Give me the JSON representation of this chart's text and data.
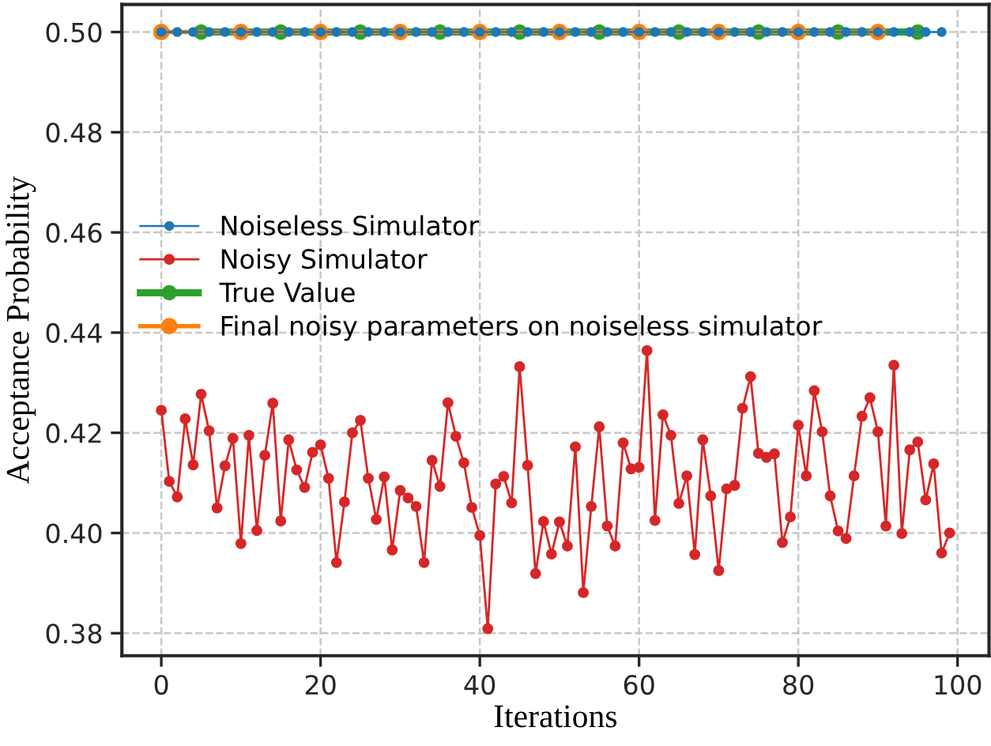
{
  "chart_data": {
    "type": "line",
    "xlabel": "Iterations",
    "ylabel": "Acceptance Probability",
    "xlim": [
      -4.95,
      103.95
    ],
    "xticks": [
      0,
      20,
      40,
      60,
      80,
      100
    ],
    "ylim": [
      0.3755,
      0.5055
    ],
    "yticks": [
      {
        "value": 0.38,
        "label": "0.38"
      },
      {
        "value": 0.4,
        "label": "0.40"
      },
      {
        "value": 0.42,
        "label": "0.42"
      },
      {
        "value": 0.44,
        "label": "0.44"
      },
      {
        "value": 0.46,
        "label": "0.46"
      },
      {
        "value": 0.48,
        "label": "0.48"
      },
      {
        "value": 0.5,
        "label": "0.50"
      }
    ],
    "grid": true,
    "legend": "left",
    "marker": "circle",
    "line_style": "solid",
    "series": [
      {
        "name": "Noiseless Simulator",
        "color": "#1f77b4",
        "x": [
          0,
          2,
          4,
          6,
          8,
          10,
          12,
          14,
          16,
          18,
          20,
          22,
          24,
          26,
          28,
          30,
          32,
          34,
          36,
          38,
          40,
          42,
          44,
          46,
          48,
          50,
          52,
          54,
          56,
          58,
          60,
          62,
          64,
          66,
          68,
          70,
          72,
          74,
          76,
          78,
          80,
          82,
          84,
          86,
          88,
          90,
          92,
          94,
          96,
          98
        ],
        "values": [
          0.5,
          0.5,
          0.5,
          0.5,
          0.5,
          0.5,
          0.5,
          0.5,
          0.5,
          0.5,
          0.5,
          0.5,
          0.5,
          0.5,
          0.5,
          0.5,
          0.5,
          0.5,
          0.5,
          0.5,
          0.5,
          0.5,
          0.5,
          0.5,
          0.5,
          0.5,
          0.5,
          0.5,
          0.5,
          0.5,
          0.5,
          0.5,
          0.5,
          0.5,
          0.5,
          0.5,
          0.5,
          0.5,
          0.5,
          0.5,
          0.5,
          0.5,
          0.5,
          0.5,
          0.5,
          0.5,
          0.5,
          0.5,
          0.5,
          0.5
        ]
      },
      {
        "name": "Noisy Simulator",
        "color": "#d62728",
        "x": [
          0,
          1,
          2,
          3,
          4,
          5,
          6,
          7,
          8,
          9,
          10,
          11,
          12,
          13,
          14,
          15,
          16,
          17,
          18,
          19,
          20,
          21,
          22,
          23,
          24,
          25,
          26,
          27,
          28,
          29,
          30,
          31,
          32,
          33,
          34,
          35,
          36,
          37,
          38,
          39,
          40,
          41,
          42,
          43,
          44,
          45,
          46,
          47,
          48,
          49,
          50,
          51,
          52,
          53,
          54,
          55,
          56,
          57,
          58,
          59,
          60,
          61,
          62,
          63,
          64,
          65,
          66,
          67,
          68,
          69,
          70,
          71,
          72,
          73,
          74,
          75,
          76,
          77,
          78,
          79,
          80,
          81,
          82,
          83,
          84,
          85,
          86,
          87,
          88,
          89,
          90,
          91,
          92,
          93,
          94,
          95,
          96,
          97,
          98,
          99
        ],
        "values": [
          0.4245,
          0.4103,
          0.4072,
          0.4228,
          0.4136,
          0.4277,
          0.4204,
          0.405,
          0.4134,
          0.4189,
          0.3979,
          0.4195,
          0.4005,
          0.4155,
          0.4259,
          0.4024,
          0.4186,
          0.4126,
          0.4091,
          0.4161,
          0.4176,
          0.4109,
          0.3941,
          0.4062,
          0.42,
          0.4225,
          0.4109,
          0.4027,
          0.4112,
          0.3966,
          0.4085,
          0.407,
          0.4053,
          0.3941,
          0.4145,
          0.4093,
          0.426,
          0.4193,
          0.414,
          0.4051,
          0.3995,
          0.3809,
          0.4098,
          0.4113,
          0.406,
          0.4332,
          0.4135,
          0.3919,
          0.4023,
          0.3958,
          0.4022,
          0.3974,
          0.4172,
          0.3881,
          0.4053,
          0.4212,
          0.4014,
          0.3974,
          0.418,
          0.4128,
          0.4131,
          0.4364,
          0.4025,
          0.4236,
          0.4195,
          0.4059,
          0.4114,
          0.3957,
          0.4186,
          0.4074,
          0.3925,
          0.4088,
          0.4095,
          0.4249,
          0.4312,
          0.4159,
          0.4151,
          0.4158,
          0.3981,
          0.4032,
          0.4215,
          0.4114,
          0.4284,
          0.4202,
          0.4074,
          0.4004,
          0.3989,
          0.4114,
          0.4233,
          0.427,
          0.4202,
          0.4014,
          0.4335,
          0.3999,
          0.4166,
          0.4182,
          0.4066,
          0.4138,
          0.396,
          0.4
        ]
      },
      {
        "name": "True Value",
        "color": "#2ca02c",
        "x": [
          5,
          15,
          25,
          35,
          45,
          55,
          65,
          75,
          85,
          95
        ],
        "values": [
          0.5,
          0.5,
          0.5,
          0.5,
          0.5,
          0.5,
          0.5,
          0.5,
          0.5,
          0.5
        ]
      },
      {
        "name": "Final noisy parameters on noiseless simulator",
        "color": "#ff7f0e",
        "x": [
          0,
          10,
          20,
          30,
          40,
          50,
          60,
          70,
          80,
          90
        ],
        "values": [
          0.5,
          0.5,
          0.5,
          0.5,
          0.5,
          0.5,
          0.5,
          0.5,
          0.5,
          0.5
        ]
      }
    ]
  }
}
